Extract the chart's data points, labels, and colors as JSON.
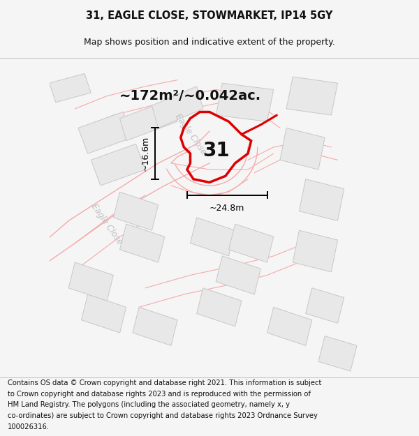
{
  "title_line1": "31, EAGLE CLOSE, STOWMARKET, IP14 5GY",
  "title_line2": "Map shows position and indicative extent of the property.",
  "footer_text": "Contains OS data © Crown copyright and database right 2021. This information is subject to Crown copyright and database rights 2023 and is reproduced with the permission of HM Land Registry. The polygons (including the associated geometry, namely x, y co-ordinates) are subject to Crown copyright and database rights 2023 Ordnance Survey 100026316.",
  "area_label": "~172m²/~0.042ac.",
  "plot_number": "31",
  "dim_width": "~24.8m",
  "dim_height": "~16.6m",
  "road_label_1": "Eagle Close",
  "road_label_2": "Eagle Close",
  "bg_color": "#f5f5f5",
  "map_bg": "#ffffff",
  "building_fill": "#e8e8e8",
  "building_stroke": "#c8c8c8",
  "road_stroke": "#f5aaaa",
  "plot_stroke": "#dd0000",
  "plot_fill": "none",
  "dim_color": "#000000",
  "title_fontsize": 10.5,
  "subtitle_fontsize": 9,
  "footer_fontsize": 7.2,
  "plot_num_fontsize": 20,
  "area_fontsize": 14,
  "road_fontsize": 8.5,
  "road_label_color": "#c0c0c0"
}
